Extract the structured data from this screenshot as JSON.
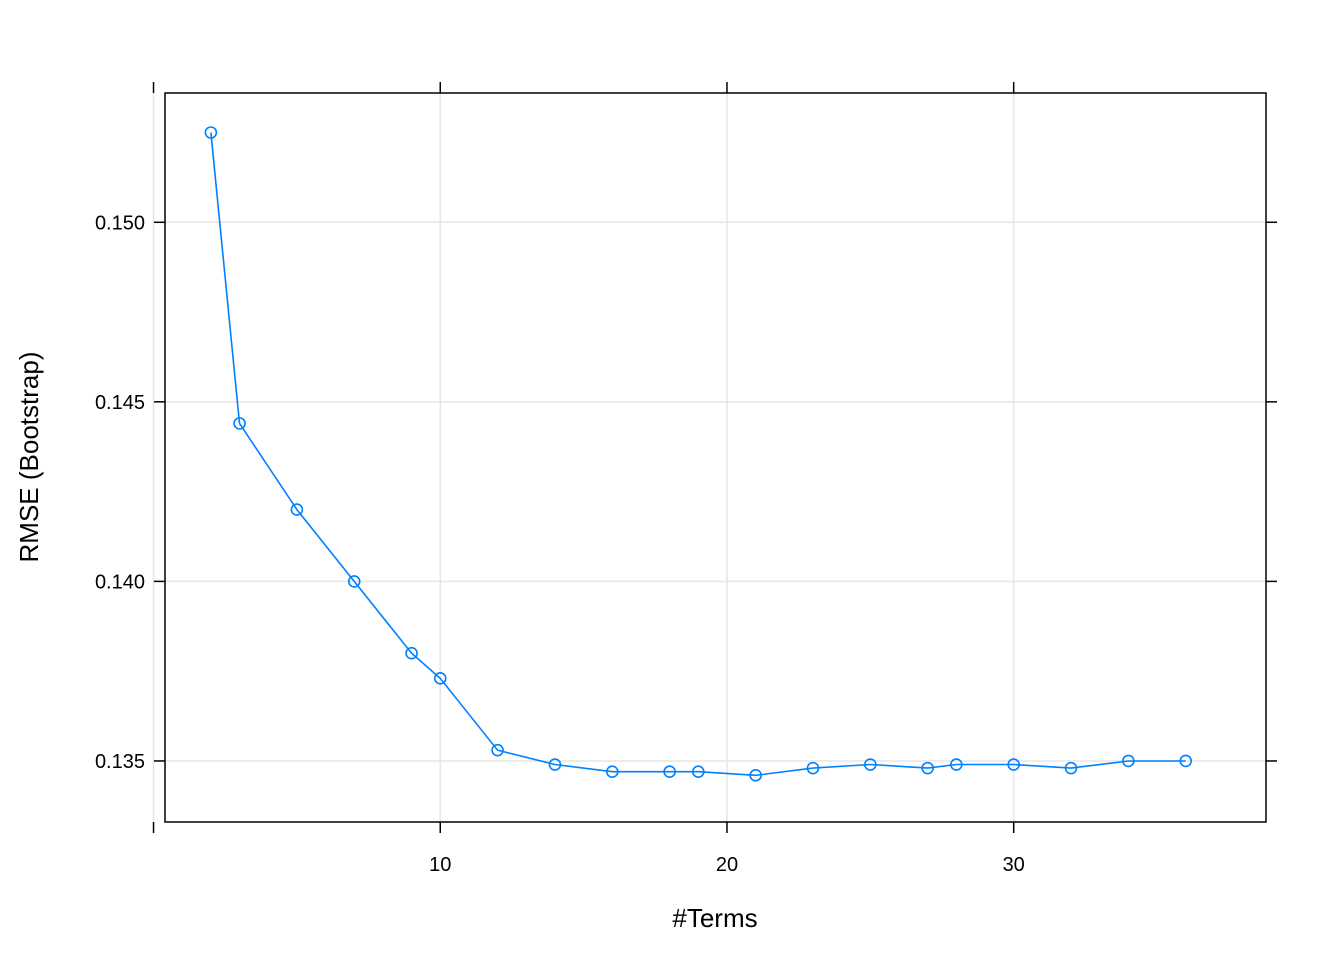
{
  "chart_data": {
    "type": "line",
    "title": "",
    "xlabel": "#Terms",
    "ylabel": "RMSE (Bootstrap)",
    "xlim": [
      0.4,
      38.8
    ],
    "ylim": [
      0.1333,
      0.1536
    ],
    "x_ticks": [
      10,
      20,
      30
    ],
    "x_tick_labels": [
      "10",
      "20",
      "30"
    ],
    "y_ticks": [
      0.135,
      0.14,
      0.145,
      0.15
    ],
    "y_tick_labels": [
      "0.135",
      "0.140",
      "0.145",
      "0.150"
    ],
    "grid": true,
    "series": [
      {
        "color": "#0080ff",
        "marker": "open-circle",
        "x": [
          2,
          3,
          5,
          7,
          9,
          10,
          12,
          14,
          16,
          18,
          19,
          21,
          23,
          25,
          27,
          28,
          30,
          32,
          34,
          36
        ],
        "y": [
          0.1525,
          0.1444,
          0.142,
          0.14,
          0.138,
          0.1373,
          0.1353,
          0.1349,
          0.1347,
          0.1347,
          0.1347,
          0.1346,
          0.1348,
          0.1349,
          0.1348,
          0.1349,
          0.1349,
          0.1348,
          0.135,
          0.135
        ]
      }
    ]
  }
}
